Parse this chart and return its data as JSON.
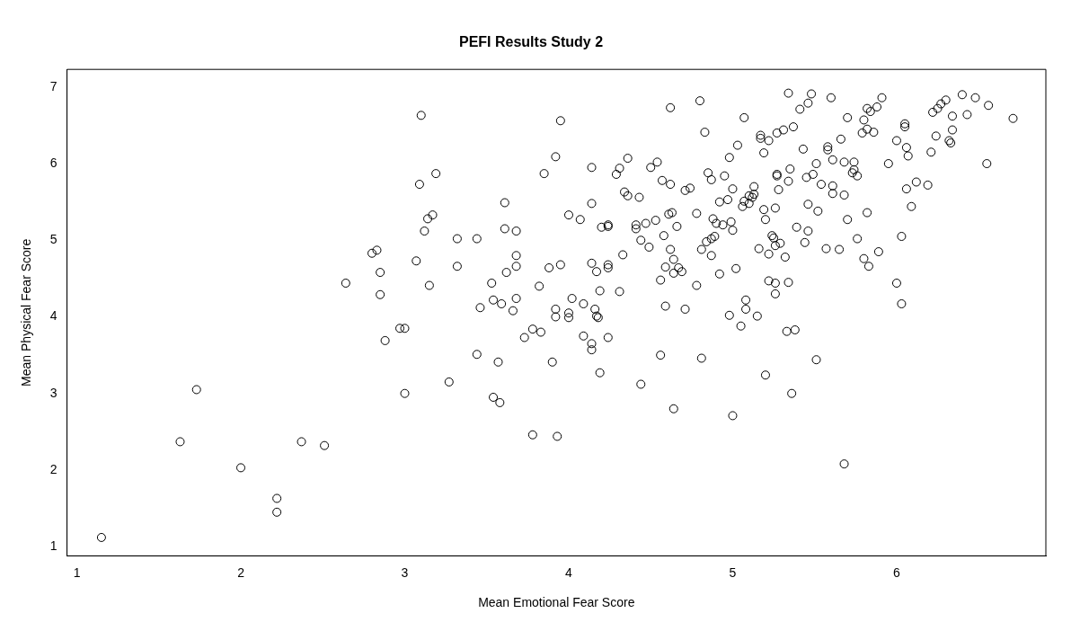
{
  "chart_data": {
    "type": "scatter",
    "title": "PEFI Results Study 2",
    "xlabel": "Mean Emotional Fear Score",
    "ylabel": "Mean Physical Fear Score",
    "marker": "circle",
    "xlim": [
      0.94,
      6.91
    ],
    "ylim": [
      0.88,
      7.23
    ],
    "xticks": [
      1,
      2,
      3,
      4,
      5,
      6
    ],
    "yticks": [
      1,
      2,
      3,
      4,
      5,
      6,
      7
    ],
    "series": [
      {
        "color": "#000000",
        "x": [
          1.15,
          1.63,
          1.73,
          2.0,
          2.22,
          2.22,
          2.37,
          2.51,
          2.64,
          2.8,
          2.83,
          2.85,
          2.85,
          2.88,
          2.97,
          3.0,
          3.0,
          3.07,
          3.09,
          3.1,
          3.12,
          3.14,
          3.15,
          3.17,
          3.19,
          3.27,
          3.32,
          3.32,
          3.44,
          3.44,
          3.46,
          3.53,
          3.54,
          3.54,
          3.57,
          3.58,
          3.59,
          3.61,
          3.61,
          3.62,
          3.66,
          3.68,
          3.68,
          3.68,
          3.68,
          3.73,
          3.78,
          3.78,
          3.82,
          3.83,
          3.85,
          3.88,
          3.9,
          3.92,
          3.92,
          3.92,
          3.93,
          3.95,
          3.95,
          4.0,
          4.0,
          4.0,
          4.02,
          4.07,
          4.09,
          4.09,
          4.14,
          4.14,
          4.14,
          4.14,
          4.14,
          4.16,
          4.17,
          4.17,
          4.18,
          4.19,
          4.19,
          4.2,
          4.24,
          4.24,
          4.24,
          4.24,
          4.24,
          4.29,
          4.31,
          4.31,
          4.33,
          4.34,
          4.36,
          4.36,
          4.41,
          4.41,
          4.43,
          4.44,
          4.44,
          4.47,
          4.49,
          4.5,
          4.53,
          4.54,
          4.56,
          4.56,
          4.57,
          4.58,
          4.59,
          4.59,
          4.61,
          4.62,
          4.62,
          4.62,
          4.63,
          4.64,
          4.64,
          4.64,
          4.66,
          4.67,
          4.69,
          4.71,
          4.71,
          4.74,
          4.78,
          4.78,
          4.8,
          4.81,
          4.81,
          4.83,
          4.84,
          4.85,
          4.87,
          4.87,
          4.87,
          4.88,
          4.89,
          4.9,
          4.92,
          4.92,
          4.94,
          4.95,
          4.97,
          4.98,
          4.98,
          4.99,
          5.0,
          5.0,
          5.0,
          5.02,
          5.03,
          5.05,
          5.06,
          5.07,
          5.07,
          5.08,
          5.08,
          5.1,
          5.1,
          5.12,
          5.13,
          5.13,
          5.15,
          5.16,
          5.17,
          5.17,
          5.19,
          5.19,
          5.2,
          5.2,
          5.22,
          5.22,
          5.22,
          5.24,
          5.25,
          5.26,
          5.26,
          5.26,
          5.26,
          5.27,
          5.27,
          5.27,
          5.28,
          5.29,
          5.31,
          5.32,
          5.33,
          5.34,
          5.34,
          5.34,
          5.35,
          5.36,
          5.37,
          5.38,
          5.39,
          5.41,
          5.43,
          5.44,
          5.45,
          5.46,
          5.46,
          5.46,
          5.48,
          5.49,
          5.51,
          5.51,
          5.52,
          5.54,
          5.57,
          5.58,
          5.58,
          5.6,
          5.61,
          5.61,
          5.61,
          5.65,
          5.66,
          5.68,
          5.68,
          5.68,
          5.7,
          5.7,
          5.73,
          5.74,
          5.74,
          5.76,
          5.76,
          5.79,
          5.8,
          5.8,
          5.82,
          5.82,
          5.82,
          5.83,
          5.84,
          5.86,
          5.88,
          5.89,
          5.91,
          5.95,
          6.0,
          6.0,
          6.03,
          6.03,
          6.05,
          6.05,
          6.06,
          6.06,
          6.07,
          6.09,
          6.12,
          6.19,
          6.21,
          6.22,
          6.24,
          6.25,
          6.27,
          6.3,
          6.32,
          6.33,
          6.34,
          6.34,
          6.4,
          6.43,
          6.48,
          6.55,
          6.56,
          6.71
        ],
        "values": [
          1.12,
          2.37,
          3.05,
          2.03,
          1.63,
          1.45,
          2.37,
          2.32,
          4.44,
          4.83,
          4.87,
          4.58,
          4.29,
          3.69,
          3.85,
          3.85,
          3.0,
          4.73,
          5.73,
          6.63,
          5.12,
          5.28,
          4.41,
          5.33,
          5.87,
          3.15,
          5.02,
          4.66,
          5.02,
          3.51,
          4.12,
          4.44,
          4.22,
          2.95,
          3.41,
          2.88,
          4.17,
          5.49,
          5.15,
          4.58,
          4.08,
          5.12,
          4.8,
          4.66,
          4.24,
          3.73,
          3.84,
          2.46,
          4.4,
          3.8,
          5.87,
          4.64,
          3.41,
          6.09,
          4.1,
          4.0,
          2.44,
          6.56,
          4.68,
          5.33,
          4.05,
          3.99,
          4.24,
          5.27,
          4.17,
          3.75,
          5.95,
          5.48,
          4.7,
          3.65,
          3.57,
          4.1,
          4.59,
          4.01,
          3.99,
          4.34,
          3.27,
          5.17,
          5.2,
          5.18,
          4.68,
          4.64,
          3.73,
          5.86,
          5.94,
          4.33,
          4.81,
          5.63,
          6.07,
          5.58,
          5.2,
          5.15,
          5.56,
          5.0,
          3.12,
          5.22,
          4.91,
          5.95,
          5.26,
          6.02,
          4.48,
          3.5,
          5.78,
          5.06,
          4.65,
          4.14,
          5.34,
          6.73,
          5.73,
          4.88,
          5.36,
          4.75,
          4.57,
          2.8,
          5.18,
          4.64,
          4.59,
          5.65,
          4.1,
          5.68,
          5.35,
          4.41,
          6.82,
          4.88,
          3.46,
          6.41,
          4.98,
          5.88,
          5.79,
          5.02,
          4.8,
          5.28,
          5.05,
          5.22,
          4.56,
          5.5,
          5.2,
          5.84,
          5.53,
          6.08,
          4.02,
          5.24,
          5.13,
          5.67,
          2.71,
          4.63,
          6.24,
          3.88,
          5.44,
          6.6,
          5.51,
          4.22,
          4.1,
          5.58,
          5.48,
          5.56,
          5.6,
          5.7,
          4.01,
          4.89,
          6.37,
          6.33,
          6.14,
          5.4,
          5.27,
          3.24,
          6.3,
          4.82,
          4.47,
          5.06,
          5.03,
          5.42,
          4.93,
          4.44,
          4.3,
          6.4,
          5.86,
          5.84,
          5.66,
          4.96,
          6.44,
          4.78,
          3.81,
          6.92,
          4.45,
          5.77,
          5.93,
          3.0,
          6.48,
          3.83,
          5.17,
          6.71,
          6.19,
          4.97,
          5.82,
          6.79,
          5.12,
          5.47,
          6.91,
          5.86,
          6.0,
          3.44,
          5.38,
          5.73,
          4.89,
          6.22,
          6.18,
          6.86,
          5.71,
          6.05,
          5.61,
          4.88,
          6.32,
          5.59,
          6.02,
          2.08,
          5.27,
          6.6,
          5.88,
          6.02,
          5.92,
          5.02,
          5.84,
          6.4,
          6.57,
          4.76,
          6.72,
          6.45,
          5.36,
          4.66,
          6.68,
          6.41,
          6.74,
          4.85,
          6.86,
          6.0,
          4.44,
          6.3,
          5.05,
          4.17,
          6.52,
          6.48,
          6.21,
          5.67,
          6.1,
          5.44,
          5.76,
          5.72,
          6.15,
          6.67,
          6.36,
          6.72,
          6.78,
          6.83,
          6.3,
          6.27,
          6.62,
          6.44,
          6.9,
          6.64,
          6.86,
          6.0,
          6.76,
          6.59
        ]
      }
    ]
  }
}
